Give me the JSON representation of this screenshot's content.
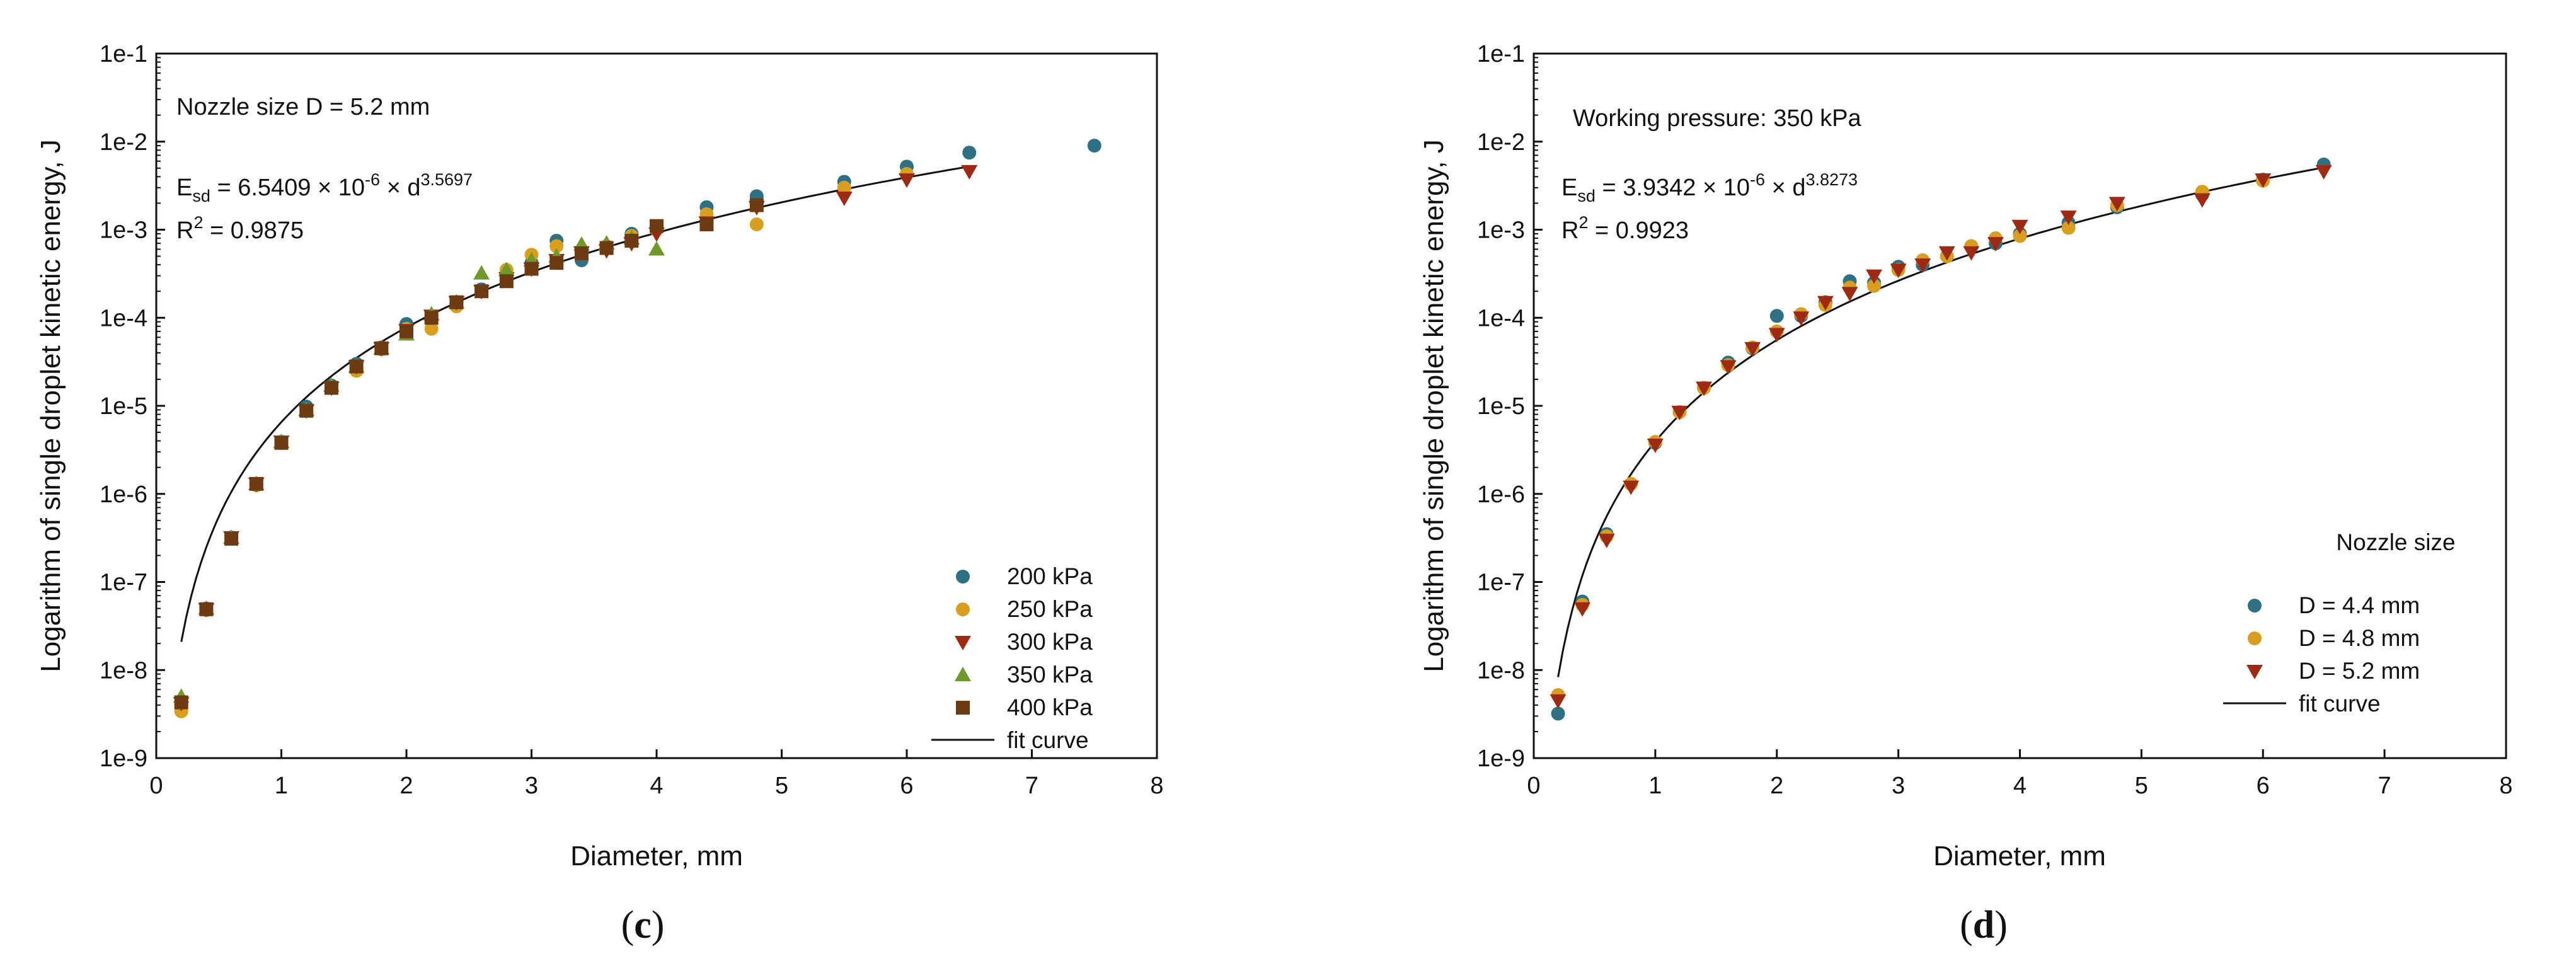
{
  "figure": {
    "panel_c_label": "c",
    "panel_d_label": "d"
  },
  "chart_data": [
    {
      "type": "scatter",
      "panel": "c",
      "title": "",
      "xlabel": "Diameter, mm",
      "ylabel": "Logarithm of single droplet kinetic energy, J",
      "y_scale": "log",
      "xlim": [
        0,
        8
      ],
      "ylim_exponent": [
        -9,
        -1
      ],
      "x_ticks": [
        "0",
        "1",
        "2",
        "3",
        "4",
        "5",
        "6",
        "7",
        "8"
      ],
      "y_ticks": [
        "1e-9",
        "1e-8",
        "1e-7",
        "1e-6",
        "1e-5",
        "1e-4",
        "1e-3",
        "1e-2",
        "1e-1"
      ],
      "annotations": {
        "line1": "Nozzle size D = 5.2 mm",
        "eq_prefix": "E",
        "eq_sub": "sd",
        "eq_body": " = 6.5409 × 10",
        "eq_exp1": "-6",
        "eq_mid": " × d",
        "eq_exp2": "3.5697",
        "r2_prefix": "R",
        "r2_sup": "2",
        "r2_value": " = 0.9875"
      },
      "legend_position": "bottom-right",
      "fit": {
        "label": "fit curve",
        "coefficient": 6.5409e-06,
        "exponent": 3.5697,
        "x_range": [
          0.2,
          6.5
        ]
      },
      "series": [
        {
          "name": "200 kPa",
          "marker": "circle",
          "color": "#2E7084",
          "x": [
            0.2,
            0.4,
            0.6,
            0.8,
            1.0,
            1.2,
            1.4,
            1.6,
            1.8,
            2.0,
            2.2,
            2.4,
            2.6,
            2.8,
            3.0,
            3.2,
            3.4,
            3.6,
            3.8,
            4.0,
            4.4,
            4.8,
            5.5,
            6.0,
            6.5,
            7.5
          ],
          "y": [
            4e-09,
            5e-08,
            3.2e-07,
            1.3e-06,
            3.9e-06,
            9.8e-06,
            1.7e-05,
            3e-05,
            4.6e-05,
            8.5e-05,
            0.000105,
            0.00015,
            0.00021,
            0.00028,
            0.00042,
            0.00075,
            0.00045,
            0.00065,
            0.0009,
            0.0011,
            0.0018,
            0.0024,
            0.0035,
            0.0052,
            0.0075,
            0.009
          ]
        },
        {
          "name": "250 kPa",
          "marker": "circle",
          "color": "#D99E1E",
          "x": [
            0.2,
            0.4,
            0.6,
            0.8,
            1.0,
            1.2,
            1.4,
            1.6,
            1.8,
            2.0,
            2.2,
            2.4,
            2.6,
            2.8,
            3.0,
            3.2,
            3.4,
            3.6,
            3.8,
            4.0,
            4.4,
            4.8,
            5.5,
            6.0
          ],
          "y": [
            3.4e-09,
            4.8e-08,
            3.1e-07,
            1.25e-06,
            3.8e-06,
            8.8e-06,
            1.6e-05,
            2.5e-05,
            4.4e-05,
            7.5e-05,
            7.5e-05,
            0.000135,
            0.0002,
            0.00035,
            0.00052,
            0.00065,
            0.00055,
            0.00065,
            0.00085,
            0.001,
            0.0015,
            0.00115,
            0.003,
            0.0043
          ]
        },
        {
          "name": "300 kPa",
          "marker": "triangle-down",
          "color": "#9E2A13",
          "x": [
            0.2,
            0.4,
            0.6,
            0.8,
            1.0,
            1.2,
            1.4,
            1.6,
            1.8,
            2.0,
            2.2,
            2.4,
            2.6,
            2.8,
            3.0,
            3.2,
            3.4,
            3.6,
            3.8,
            4.0,
            4.4,
            4.8,
            5.5,
            6.0,
            6.5
          ],
          "y": [
            4.2e-09,
            4.9e-08,
            3.2e-07,
            1.3e-06,
            3.9e-06,
            8.8e-06,
            1.6e-05,
            2.8e-05,
            4.5e-05,
            7.2e-05,
            0.000105,
            0.00015,
            0.0002,
            0.00028,
            0.00036,
            0.00045,
            0.00055,
            0.00058,
            0.0007,
            0.0009,
            0.0012,
            0.0018,
            0.0023,
            0.0037,
            0.0046
          ]
        },
        {
          "name": "350 kPa",
          "marker": "triangle-up",
          "color": "#6F9A2B",
          "x": [
            0.2,
            0.4,
            0.6,
            0.8,
            1.0,
            1.2,
            1.4,
            1.6,
            1.8,
            2.0,
            2.2,
            2.4,
            2.6,
            2.8,
            3.0,
            3.2,
            3.4,
            3.6,
            3.8,
            4.0
          ],
          "y": [
            5e-09,
            5e-08,
            3.2e-07,
            1.3e-06,
            3.9e-06,
            9e-06,
            1.7e-05,
            2.8e-05,
            4.5e-05,
            6.5e-05,
            0.00011,
            0.00015,
            0.00032,
            0.00035,
            0.00045,
            0.0005,
            0.00068,
            0.0007,
            0.0008,
            0.0006
          ]
        },
        {
          "name": "400 kPa",
          "marker": "square",
          "color": "#6E3A12",
          "x": [
            0.2,
            0.4,
            0.6,
            0.8,
            1.0,
            1.2,
            1.4,
            1.6,
            1.8,
            2.0,
            2.2,
            2.4,
            2.6,
            2.8,
            3.0,
            3.2,
            3.4,
            3.6,
            3.8,
            4.0,
            4.4,
            4.8
          ],
          "y": [
            4.3e-09,
            4.9e-08,
            3.1e-07,
            1.3e-06,
            3.8e-06,
            8.8e-06,
            1.6e-05,
            2.8e-05,
            4.5e-05,
            7e-05,
            0.0001,
            0.00015,
            0.0002,
            0.00026,
            0.00036,
            0.00042,
            0.00054,
            0.00062,
            0.00075,
            0.0011,
            0.00115,
            0.0019
          ]
        }
      ]
    },
    {
      "type": "scatter",
      "panel": "d",
      "title": "",
      "xlabel": "Diameter, mm",
      "ylabel": "Logarithm of single droplet kinetic energy, J",
      "y_scale": "log",
      "xlim": [
        0,
        8
      ],
      "ylim_exponent": [
        -9,
        -1
      ],
      "x_ticks": [
        "0",
        "1",
        "2",
        "3",
        "4",
        "5",
        "6",
        "7",
        "8"
      ],
      "y_ticks": [
        "1e-9",
        "1e-8",
        "1e-7",
        "1e-6",
        "1e-5",
        "1e-4",
        "1e-3",
        "1e-2",
        "1e-1"
      ],
      "annotations": {
        "line1": "Working pressure: 350 kPa",
        "eq_prefix": "E",
        "eq_sub": "sd",
        "eq_body": " = 3.9342 × 10",
        "eq_exp1": "-6",
        "eq_mid": " × d",
        "eq_exp2": "3.8273",
        "r2_prefix": "R",
        "r2_sup": "2",
        "r2_value": " = 0.9923"
      },
      "legend_title": "Nozzle size",
      "legend_position": "bottom-right",
      "fit": {
        "label": "fit curve",
        "coefficient": 3.9342e-06,
        "exponent": 3.8273,
        "x_range": [
          0.2,
          6.5
        ]
      },
      "series": [
        {
          "name": "D = 4.4 mm",
          "marker": "circle",
          "color": "#2E7084",
          "x": [
            0.2,
            0.4,
            0.6,
            0.8,
            1.0,
            1.2,
            1.4,
            1.6,
            1.8,
            2.0,
            2.2,
            2.4,
            2.6,
            2.8,
            3.0,
            3.2,
            3.4,
            3.6,
            3.8,
            4.0,
            4.4,
            4.8,
            5.5,
            6.0,
            6.5
          ],
          "y": [
            3.2e-09,
            6e-08,
            3.5e-07,
            1.3e-06,
            3.8e-06,
            8.5e-06,
            1.6e-05,
            3.1e-05,
            4.5e-05,
            0.000105,
            0.000105,
            0.00015,
            0.00026,
            0.00025,
            0.00038,
            0.0004,
            0.0005,
            0.00065,
            0.0007,
            0.0009,
            0.0012,
            0.0018,
            0.0025,
            0.0037,
            0.0055
          ]
        },
        {
          "name": "D = 4.8 mm",
          "marker": "circle",
          "color": "#D99E1E",
          "x": [
            0.2,
            0.4,
            0.6,
            0.8,
            1.0,
            1.2,
            1.4,
            1.6,
            1.8,
            2.0,
            2.2,
            2.4,
            2.6,
            2.8,
            3.0,
            3.2,
            3.4,
            3.6,
            3.8,
            4.0,
            4.4,
            4.8,
            5.5,
            6.0
          ],
          "y": [
            5.2e-09,
            5.5e-08,
            3.3e-07,
            1.3e-06,
            3.9e-06,
            8.5e-06,
            1.6e-05,
            2.9e-05,
            4.6e-05,
            7e-05,
            0.00011,
            0.00014,
            0.00022,
            0.00023,
            0.00035,
            0.00045,
            0.0005,
            0.00065,
            0.0008,
            0.00085,
            0.00105,
            0.0019,
            0.0027,
            0.0036
          ]
        },
        {
          "name": "D = 5.2 mm",
          "marker": "triangle-down",
          "color": "#9E2A13",
          "x": [
            0.2,
            0.4,
            0.6,
            0.8,
            1.0,
            1.2,
            1.4,
            1.6,
            1.8,
            2.0,
            2.2,
            2.4,
            2.6,
            2.8,
            3.0,
            3.2,
            3.4,
            3.6,
            3.8,
            4.0,
            4.4,
            4.8,
            5.5,
            6.0,
            6.5
          ],
          "y": [
            4.5e-09,
            5e-08,
            3e-07,
            1.2e-06,
            3.6e-06,
            8.5e-06,
            1.6e-05,
            2.8e-05,
            4.5e-05,
            6.5e-05,
            0.0001,
            0.00015,
            0.00019,
            0.0003,
            0.00035,
            0.0004,
            0.00055,
            0.00055,
            0.0007,
            0.0011,
            0.0014,
            0.002,
            0.0022,
            0.0037,
            0.0046
          ]
        }
      ]
    }
  ]
}
